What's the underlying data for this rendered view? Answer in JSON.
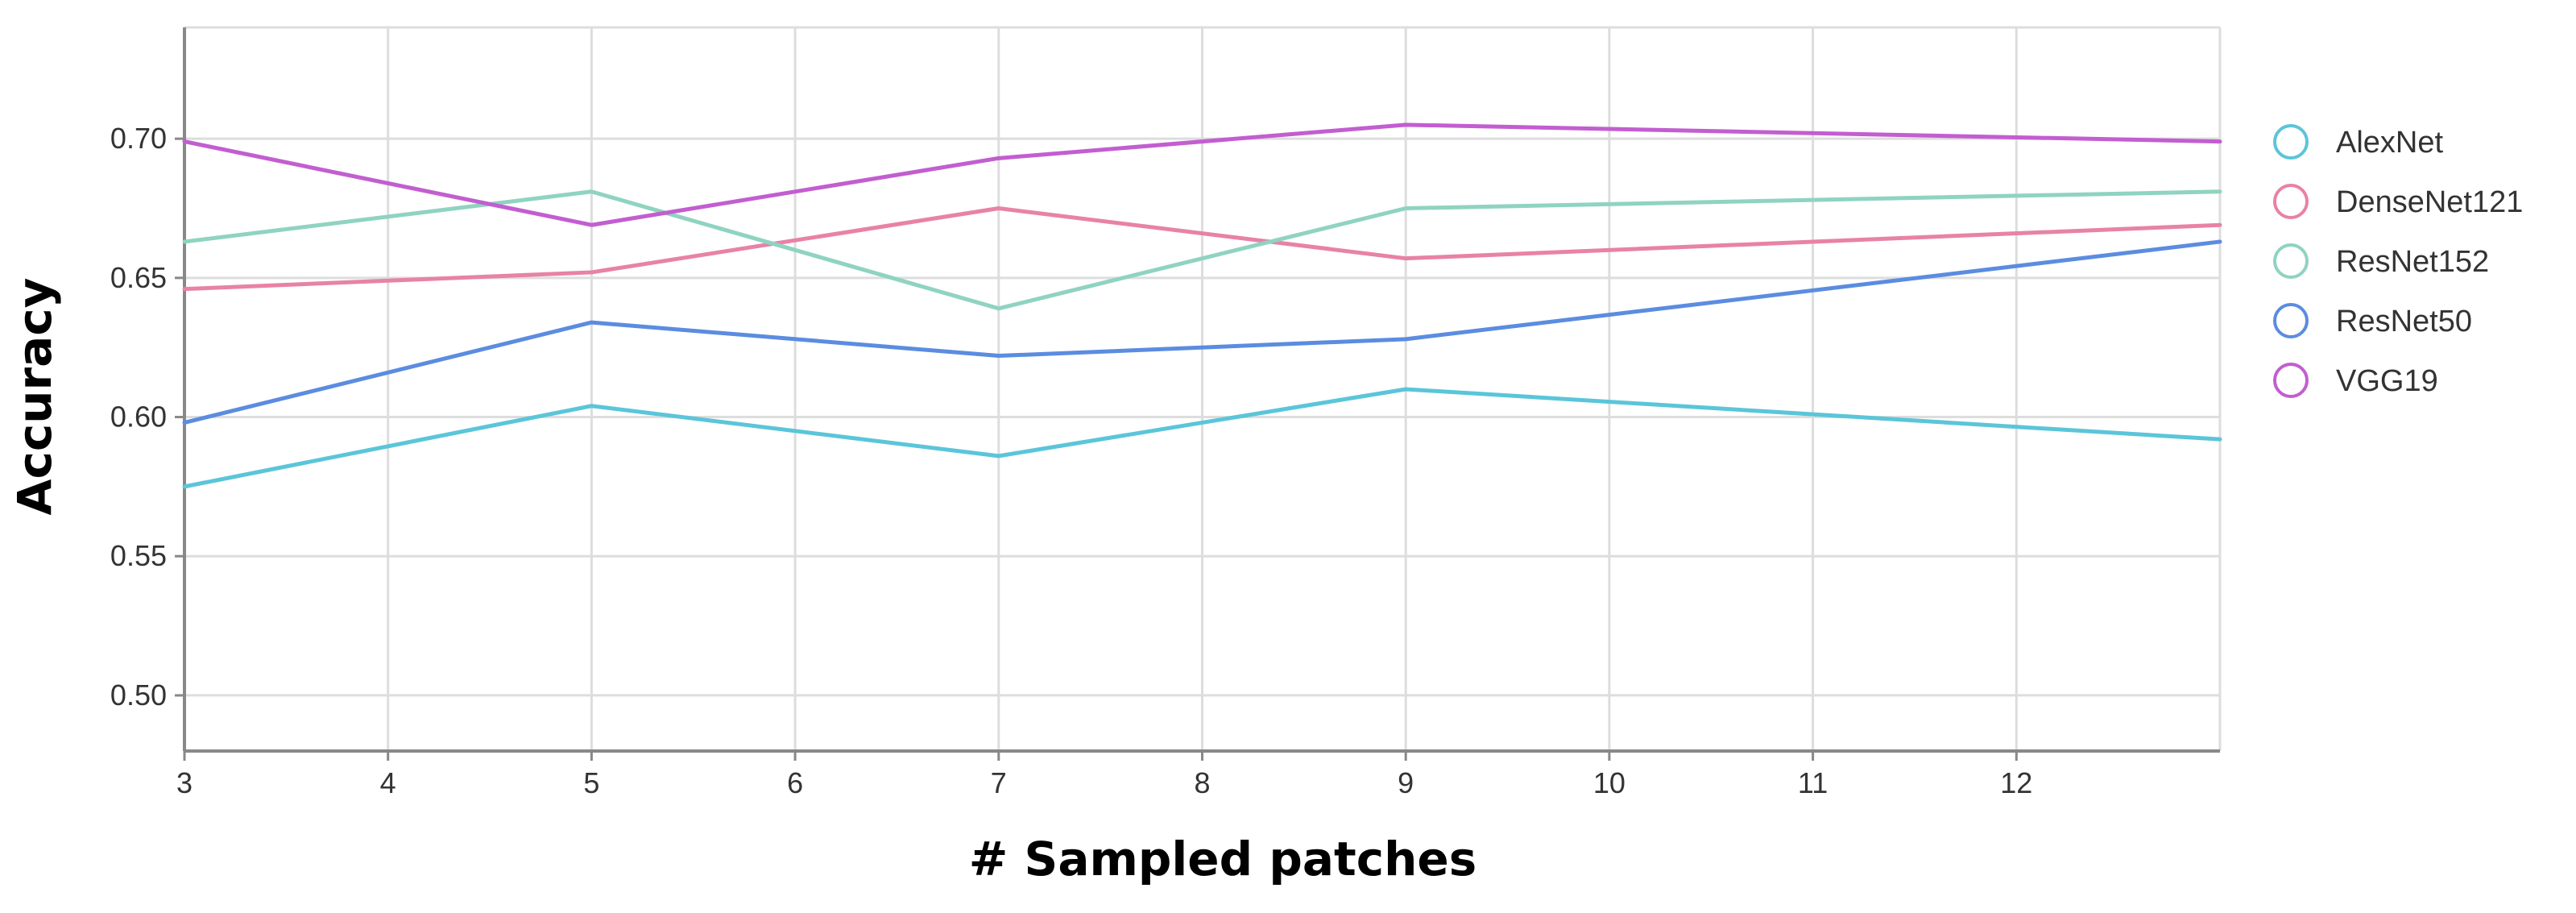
{
  "chart_data": {
    "type": "line",
    "title": "",
    "xlabel": "# Sampled patches",
    "ylabel": "Accuracy",
    "x": [
      3,
      5,
      7,
      9,
      13
    ],
    "xlim": [
      3,
      13
    ],
    "ylim": [
      0.48,
      0.74
    ],
    "xticks": [
      "3",
      "4",
      "5",
      "6",
      "7",
      "8",
      "9",
      "10",
      "11",
      "12"
    ],
    "xtick_values": [
      3,
      4,
      5,
      6,
      7,
      8,
      9,
      10,
      11,
      12
    ],
    "yticks": [
      "0.50",
      "0.55",
      "0.60",
      "0.65",
      "0.70"
    ],
    "ytick_values": [
      0.5,
      0.55,
      0.6,
      0.65,
      0.7
    ],
    "grid": true,
    "legend_position": "right",
    "series": [
      {
        "name": "AlexNet",
        "color": "#5bc5d9",
        "values": [
          0.575,
          0.604,
          0.586,
          0.61,
          0.592
        ]
      },
      {
        "name": "DenseNet121",
        "color": "#e882a6",
        "values": [
          0.646,
          0.652,
          0.675,
          0.657,
          0.669
        ]
      },
      {
        "name": "ResNet152",
        "color": "#8fd3c1",
        "values": [
          0.663,
          0.681,
          0.639,
          0.675,
          0.681
        ]
      },
      {
        "name": "ResNet50",
        "color": "#5b8ce0",
        "values": [
          0.598,
          0.634,
          0.622,
          0.628,
          0.663
        ]
      },
      {
        "name": "VGG19",
        "color": "#c25ed0",
        "values": [
          0.699,
          0.669,
          0.693,
          0.705,
          0.699
        ]
      }
    ]
  }
}
